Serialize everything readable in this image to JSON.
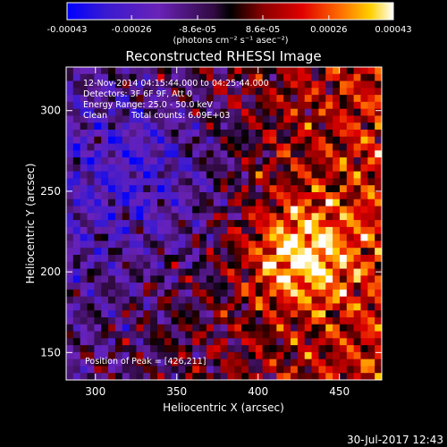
{
  "colorbar": {
    "tick_labels": [
      "-0.00043",
      "-0.00026",
      "-8.6e-05",
      "8.6e-05",
      "0.00026",
      "0.00043"
    ],
    "tick_values": [
      -0.00043,
      -0.00026,
      -8.6e-05,
      8.6e-05,
      0.00026,
      0.00043
    ],
    "range": [
      -0.00043,
      0.00043
    ],
    "unit_label": "(photons cm⁻² s⁻¹ asec⁻²)"
  },
  "chart_data": {
    "type": "heatmap",
    "title": "Reconstructed RHESSI Image",
    "xlabel": "Heliocentric X (arcsec)",
    "ylabel": "Heliocentric Y (arcsec)",
    "xlim": [
      282,
      476
    ],
    "ylim": [
      133,
      327
    ],
    "x_ticks": [
      300,
      350,
      400,
      450
    ],
    "y_ticks": [
      150,
      200,
      250,
      300
    ],
    "grid": false,
    "value_range": [
      -0.00043,
      0.00043
    ],
    "peak": {
      "x": 426,
      "y": 211
    }
  },
  "annotations": {
    "time_range": "12-Nov-2014 04:15:44.000 to 04:25:44.000",
    "detectors": "Detectors: 3F 6F 9F, Att 0",
    "energy_range": "Energy Range: 25.0 - 50.0 keV",
    "clean": "Clean",
    "total_counts": "Total counts: 6.09E+03",
    "peak_position": "Position of Peak = [426,211]"
  },
  "footer": {
    "timestamp": "30-Jul-2017 12:43"
  }
}
